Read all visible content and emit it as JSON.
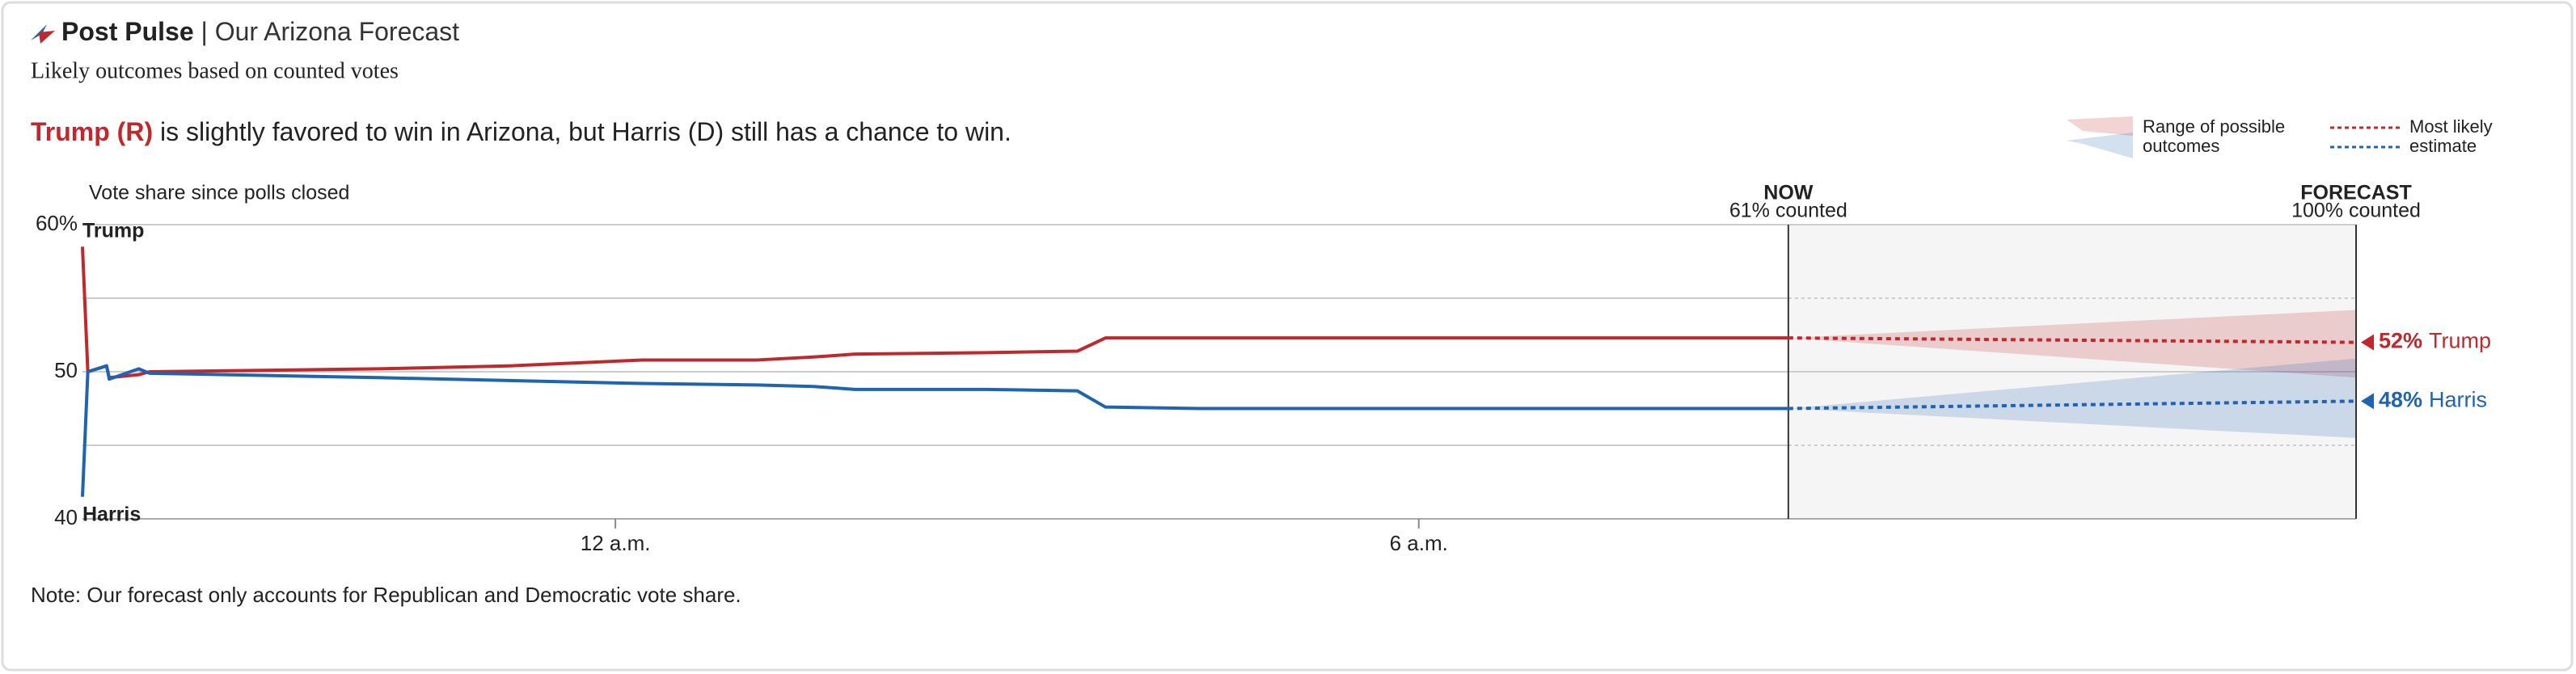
{
  "chart_data": {
    "type": "line",
    "title": "Post Pulse",
    "title_suffix": "| Our Arizona Forecast",
    "subtitle": "Likely outcomes based on counted votes",
    "headline": {
      "highlight": "Trump (R)",
      "text": " is slightly favored to win in Arizona, but Harris (D) still has a chance to win."
    },
    "y_label": "Vote share since polls closed",
    "legend": {
      "range": [
        "Range of possible",
        "outcomes"
      ],
      "estimate": [
        "Most likely",
        "estimate"
      ]
    },
    "now": {
      "x": 8.76,
      "label": "NOW",
      "sublabel": "61% counted"
    },
    "forecast": {
      "x": 13.0,
      "label": "FORECAST",
      "sublabel": "100% counted"
    },
    "note": "Note: Our forecast only accounts for Republican and Democratic vote share.",
    "x": [
      -3.98,
      -3.94,
      -3.8,
      -3.78,
      -3.56,
      -3.48,
      -1.77,
      -0.79,
      0.2,
      1.06,
      1.48,
      1.79,
      2.77,
      3.45,
      3.66,
      4.37,
      8.76
    ],
    "series": [
      {
        "name": "Trump",
        "color": "#c0282d",
        "values": [
          58.5,
          50,
          50.4,
          49.6,
          49.8,
          50,
          50.2,
          50.4,
          50.8,
          50.8,
          51.0,
          51.2,
          51.3,
          51.4,
          52.3,
          52.3,
          52.3
        ],
        "forecast_value": 52,
        "forecast_label": "52%",
        "forecast_low": 49.6,
        "forecast_high": 54.2
      },
      {
        "name": "Harris",
        "color": "#1f63b3",
        "values": [
          41.5,
          50,
          50.4,
          49.5,
          50.2,
          49.9,
          49.6,
          49.4,
          49.2,
          49.1,
          49.0,
          48.8,
          48.8,
          48.7,
          47.6,
          47.5,
          47.5
        ],
        "forecast_value": 48,
        "forecast_label": "48%",
        "forecast_low": 45.5,
        "forecast_high": 50.9
      }
    ],
    "xlim": [
      -3.98,
      13.0
    ],
    "xticks": [
      {
        "value": 0,
        "label": "12 a.m."
      },
      {
        "value": 6,
        "label": "6 a.m."
      }
    ],
    "ylim": [
      40,
      60
    ],
    "yticks": [
      {
        "value": 60,
        "label": "60%"
      },
      50,
      40
    ],
    "ygrid": [
      45,
      55
    ],
    "grid": true
  }
}
